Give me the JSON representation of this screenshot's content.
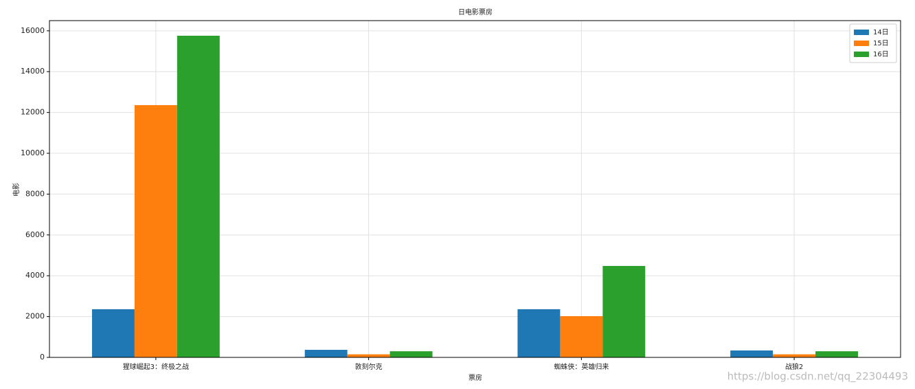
{
  "chart_data": {
    "type": "bar",
    "title": "日电影票房",
    "x_label": "票房",
    "y_label": "电影",
    "categories": [
      "猩球崛起3：终极之战",
      "敦刻尔克",
      "蜘蛛侠：英雄归来",
      "战狼2"
    ],
    "series": [
      {
        "name": "14日",
        "color": "#1f77b4",
        "values": [
          2360,
          370,
          2360,
          340
        ]
      },
      {
        "name": "15日",
        "color": "#ff7f0e",
        "values": [
          12360,
          150,
          2020,
          150
        ]
      },
      {
        "name": "16日",
        "color": "#2ca02c",
        "values": [
          15760,
          300,
          4480,
          300
        ]
      }
    ],
    "ylim": [
      0,
      16500
    ],
    "yticks": [
      0,
      2000,
      4000,
      6000,
      8000,
      10000,
      12000,
      14000,
      16000
    ],
    "grid": true,
    "legend": "upper right",
    "watermark": "https://blog.csdn.net/qq_22304493"
  }
}
